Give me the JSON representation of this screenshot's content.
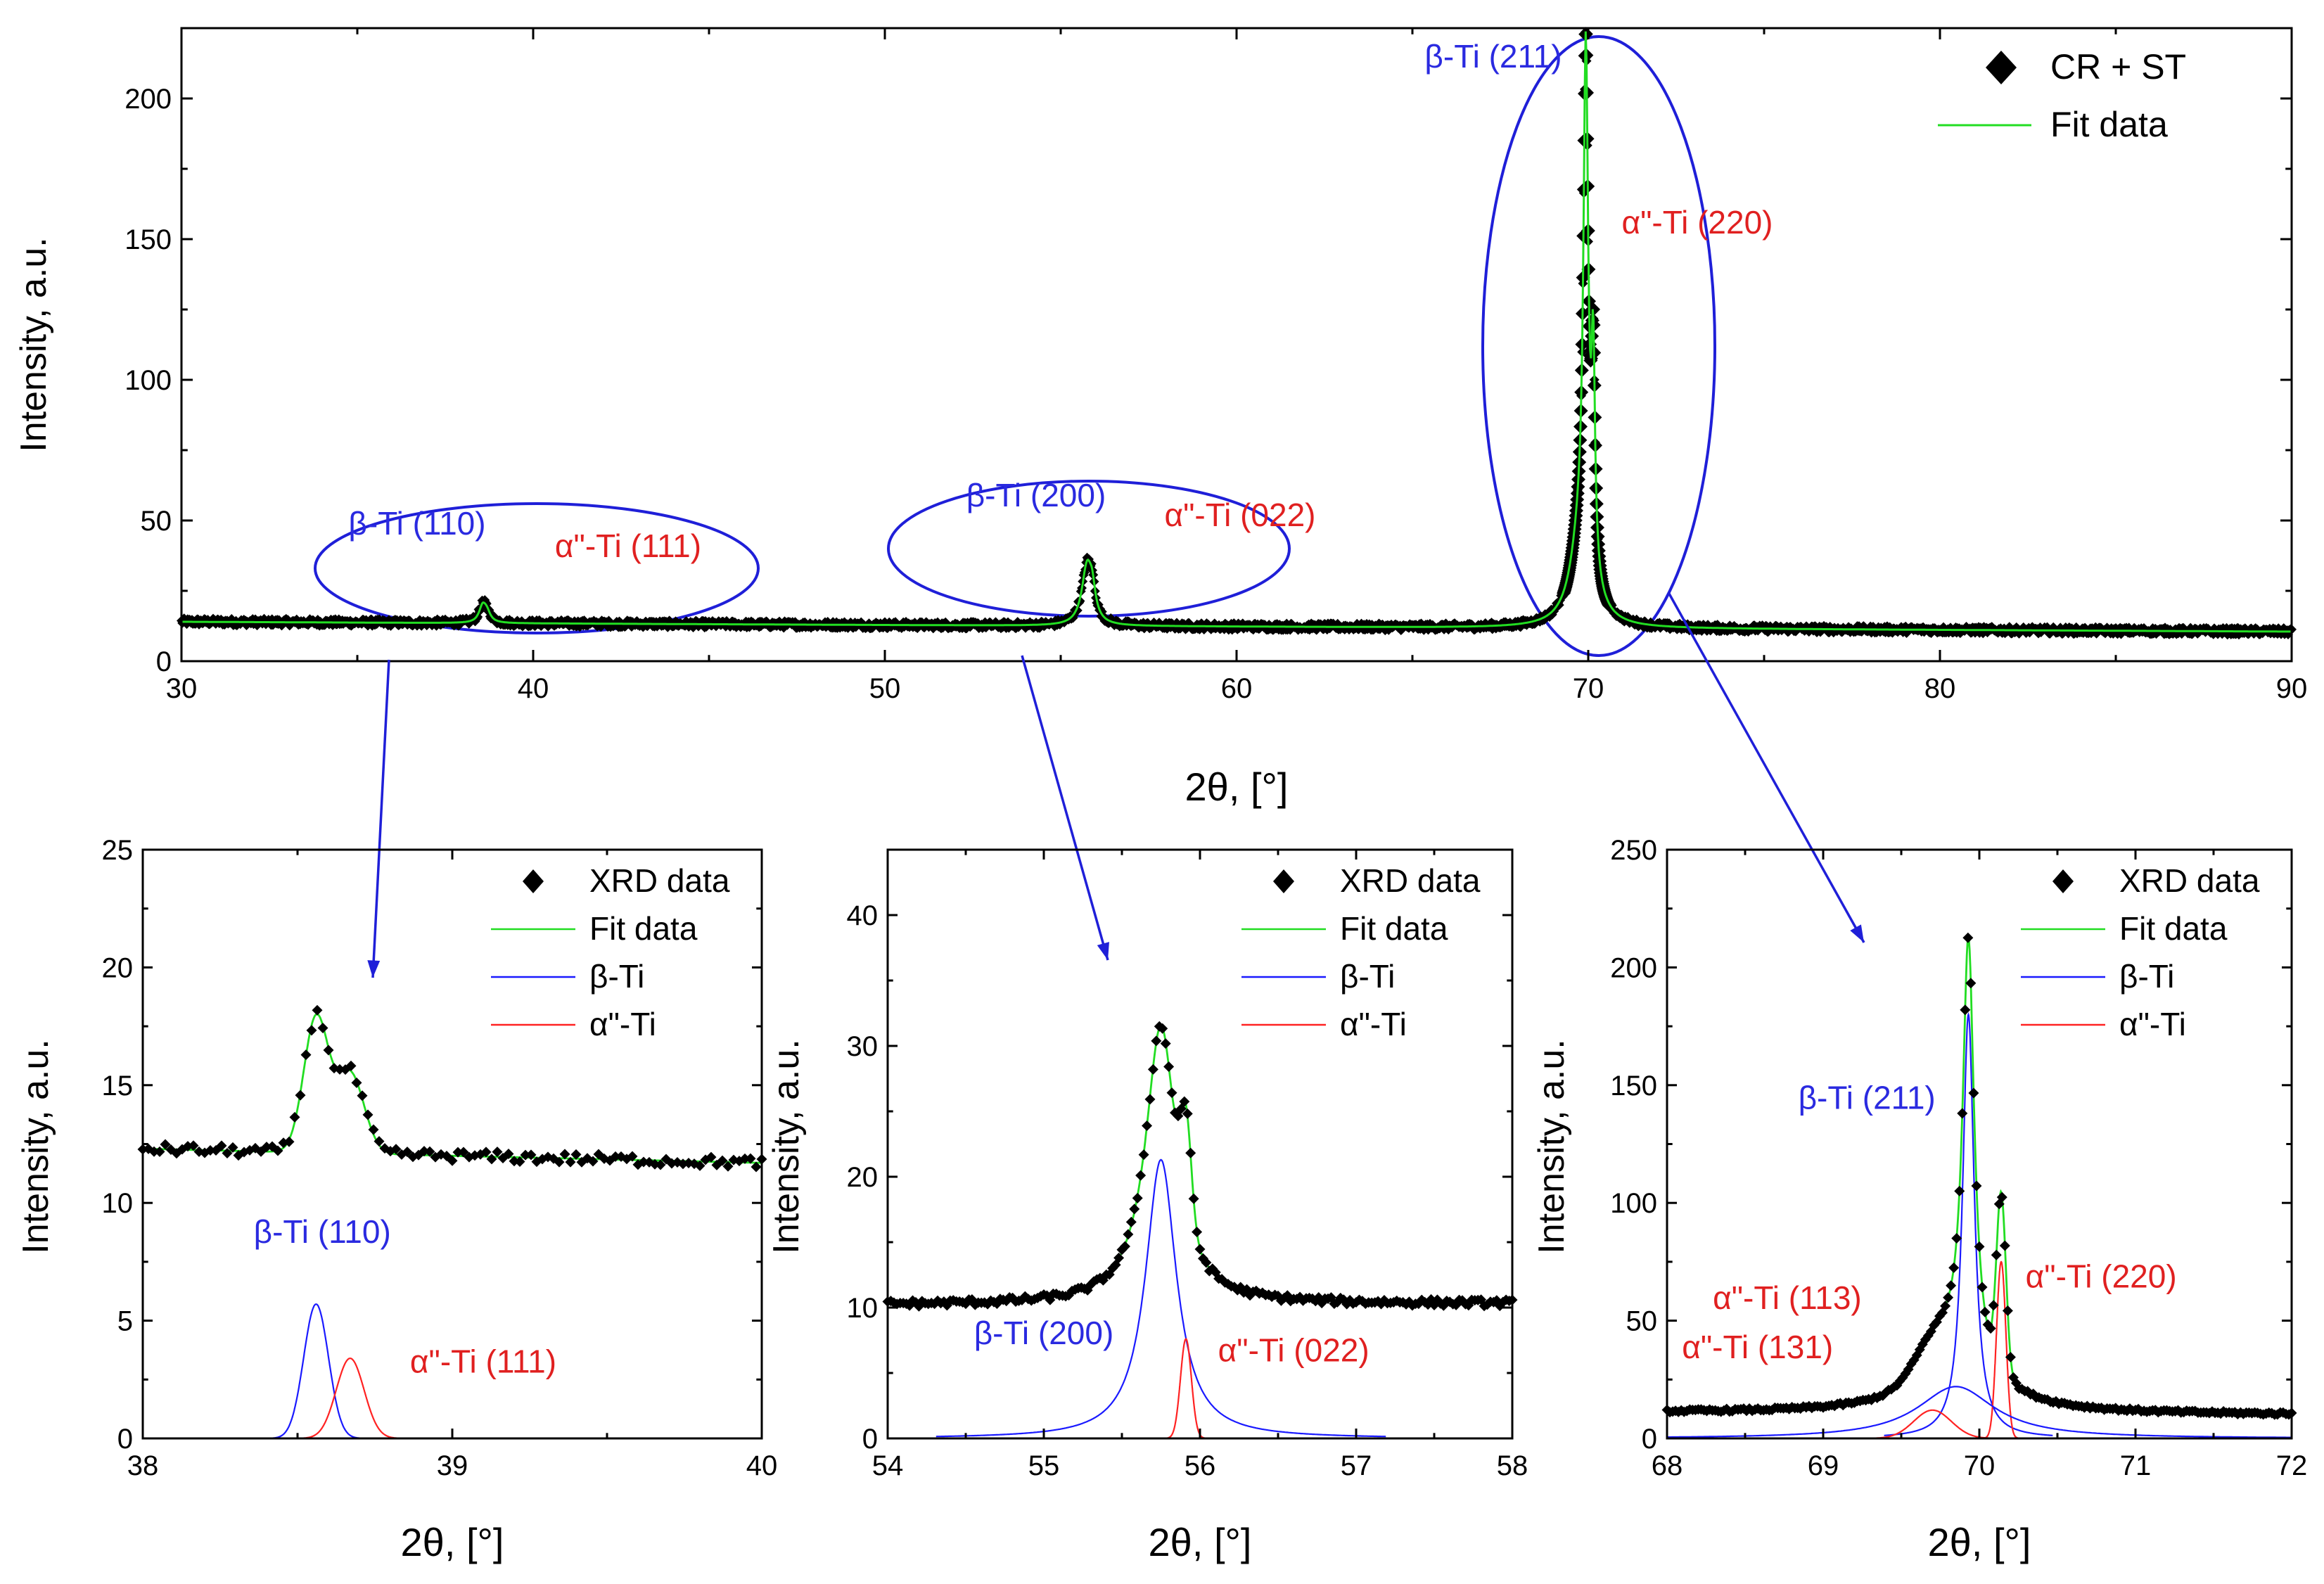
{
  "colors": {
    "xrd": "#000000",
    "fit": "#22dd22",
    "beta": "#1a1aff",
    "alpha": "#ff2222",
    "ellipse": "#1f1fd8",
    "beta_label": "#2a2ae0",
    "alpha_label": "#e02020"
  },
  "chart_data": [
    {
      "id": "main",
      "type": "scatter",
      "xlabel": "2θ, [°]",
      "ylabel": "Intensity, a.u.",
      "xlim": [
        30,
        90
      ],
      "ylim": [
        0,
        225
      ],
      "xticks": [
        30,
        40,
        50,
        60,
        70,
        80,
        90
      ],
      "yticks": [
        0,
        50,
        100,
        150,
        200
      ],
      "legend": {
        "position": "top-right",
        "entries": [
          {
            "name": "CR + ST",
            "style": "marker"
          },
          {
            "name": "Fit data",
            "style": "line"
          }
        ]
      },
      "baseline": {
        "start": 14,
        "end": 10.5,
        "noise": 1.2
      },
      "peaks": [
        {
          "center": 38.56,
          "height": 5.5,
          "width": 0.12
        },
        {
          "center": 38.68,
          "height": 3.4,
          "width": 0.12
        },
        {
          "center": 55.75,
          "height": 21,
          "width": 0.18
        },
        {
          "center": 55.9,
          "height": 7.5,
          "width": 0.1
        },
        {
          "center": 69.93,
          "height": 180,
          "width": 0.08
        },
        {
          "center": 70.14,
          "height": 75,
          "width": 0.06
        },
        {
          "center": 69.85,
          "height": 22,
          "width": 0.35
        },
        {
          "center": 69.7,
          "height": 10,
          "width": 0.3
        }
      ],
      "annotations": [
        {
          "text": "β-Ti (110)",
          "x": 36.7,
          "y": 45,
          "phase": "beta"
        },
        {
          "text": "α\"-Ti (111)",
          "x": 42.7,
          "y": 37,
          "phase": "alpha"
        },
        {
          "text": "β-Ti (200)",
          "x": 54.3,
          "y": 55,
          "phase": "beta"
        },
        {
          "text": "α\"-Ti (022)",
          "x": 60.1,
          "y": 48,
          "phase": "alpha"
        },
        {
          "text": "β-Ti (211)",
          "x": 67.3,
          "y": 211,
          "phase": "beta"
        },
        {
          "text": "α\"-Ti (220)",
          "x": 73.1,
          "y": 152,
          "phase": "alpha"
        }
      ],
      "ellipses": [
        {
          "cx": 40.1,
          "cy": 33,
          "rx": 6.3,
          "ry": 23
        },
        {
          "cx": 55.8,
          "cy": 40,
          "rx": 5.7,
          "ry": 24
        },
        {
          "cx": 70.3,
          "cy": 112,
          "rx": 3.3,
          "ry": 110
        }
      ],
      "leaders": [
        {
          "from_x": 35.9,
          "from_y": 0.5,
          "to_panel": 0
        },
        {
          "from_x": 53.9,
          "from_y": 2,
          "to_panel": 1
        },
        {
          "from_x": 72.3,
          "from_y": 24,
          "to_panel": 2
        }
      ]
    },
    {
      "id": "zoom1",
      "type": "scatter",
      "xlabel": "2θ, [°]",
      "ylabel": "Intensity, a.u.",
      "xlim": [
        38,
        40
      ],
      "ylim": [
        0,
        25
      ],
      "xticks": [
        38,
        39,
        40
      ],
      "yticks": [
        0,
        5,
        10,
        15,
        20,
        25
      ],
      "legend": {
        "position": "top-right",
        "entries": [
          {
            "name": "XRD data",
            "style": "marker"
          },
          {
            "name": "Fit data",
            "style": "line"
          },
          {
            "name": "β-Ti",
            "style": "line"
          },
          {
            "name": "α\"-Ti",
            "style": "line"
          }
        ]
      },
      "background": {
        "start": 12.3,
        "end": 11.7,
        "noise": 0.22
      },
      "points": 110,
      "fit_lift_at_start": 0.25,
      "components": [
        {
          "phase": "beta",
          "center": 38.56,
          "height": 5.7,
          "width": 0.04,
          "hidden_below": 2
        },
        {
          "phase": "alpha",
          "center": 38.67,
          "height": 3.4,
          "width": 0.045,
          "hidden_below": 2
        }
      ],
      "annotations": [
        {
          "text": "β-Ti (110)",
          "x": 38.58,
          "y": 8.3,
          "phase": "beta"
        },
        {
          "text": "α\"-Ti (111)",
          "x": 39.1,
          "y": 2.8,
          "phase": "alpha"
        }
      ]
    },
    {
      "id": "zoom2",
      "type": "scatter",
      "xlabel": "2θ, [°]",
      "ylabel": "Intensity, a.u.",
      "xlim": [
        54,
        58
      ],
      "ylim": [
        0,
        45
      ],
      "xticks": [
        54,
        55,
        56,
        57,
        58
      ],
      "yticks": [
        0,
        10,
        20,
        30,
        40
      ],
      "legend": {
        "position": "top-right",
        "entries": [
          {
            "name": "XRD data",
            "style": "marker"
          },
          {
            "name": "Fit data",
            "style": "line"
          },
          {
            "name": "β-Ti",
            "style": "line"
          },
          {
            "name": "α\"-Ti",
            "style": "line"
          }
        ]
      },
      "background": {
        "start": 10.2,
        "end": 10.3,
        "noise": 0.25
      },
      "points": 200,
      "components": [
        {
          "phase": "beta",
          "center": 55.75,
          "height": 21.3,
          "width": 0.12,
          "type": "lorentz"
        },
        {
          "phase": "alpha",
          "center": 55.91,
          "height": 7.6,
          "width": 0.035
        }
      ],
      "annotations": [
        {
          "text": "β-Ti (200)",
          "x": 55.0,
          "y": 7.2,
          "phase": "beta"
        },
        {
          "text": "α\"-Ti (022)",
          "x": 56.6,
          "y": 5.9,
          "phase": "alpha"
        }
      ]
    },
    {
      "id": "zoom3",
      "type": "scatter",
      "xlabel": "2θ, [°]",
      "ylabel": "Intensity, a.u.",
      "xlim": [
        68,
        72
      ],
      "ylim": [
        0,
        250
      ],
      "xticks": [
        68,
        69,
        70,
        71,
        72
      ],
      "yticks": [
        0,
        50,
        100,
        150,
        200,
        250
      ],
      "legend": {
        "position": "top-right",
        "entries": [
          {
            "name": "XRD data",
            "style": "marker"
          },
          {
            "name": "Fit data",
            "style": "line"
          },
          {
            "name": "β-Ti",
            "style": "line"
          },
          {
            "name": "α\"-Ti",
            "style": "line"
          }
        ]
      },
      "background": {
        "start": 11,
        "end": 10,
        "noise": 0.6
      },
      "points": 220,
      "components": [
        {
          "phase": "beta",
          "center": 69.93,
          "height": 180,
          "width": 0.045,
          "type": "lorentz"
        },
        {
          "phase": "alpha",
          "center": 70.14,
          "height": 75,
          "width": 0.03
        },
        {
          "phase": "beta",
          "center": 69.85,
          "height": 22,
          "width": 0.3,
          "type": "lorentz"
        },
        {
          "phase": "alpha",
          "center": 69.7,
          "height": 12,
          "width": 0.12
        }
      ],
      "annotations": [
        {
          "text": "β-Ti (211)",
          "x": 69.28,
          "y": 140,
          "phase": "beta"
        },
        {
          "text": "α\"-Ti (220)",
          "x": 70.78,
          "y": 64,
          "phase": "alpha"
        },
        {
          "text": "α\"-Ti (113)",
          "x": 68.77,
          "y": 55,
          "phase": "alpha"
        },
        {
          "text": "α\"-Ti (131)",
          "x": 68.58,
          "y": 34,
          "phase": "alpha"
        }
      ]
    }
  ]
}
